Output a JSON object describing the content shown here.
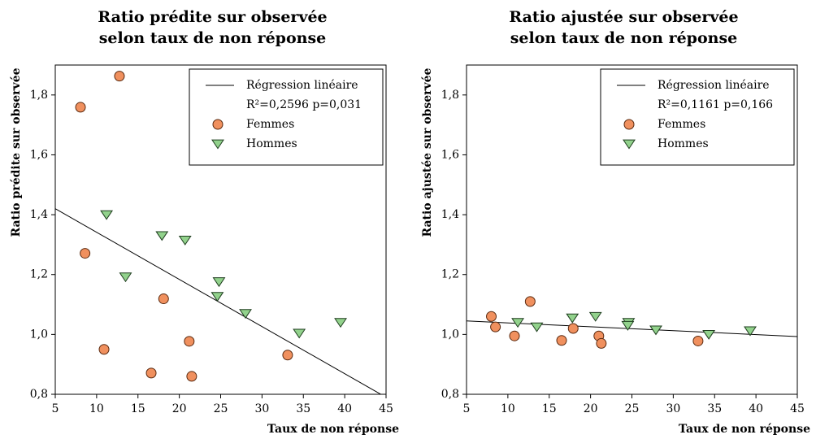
{
  "chart_data": [
    {
      "type": "scatter",
      "title": [
        "Ratio prédite sur observée",
        "selon taux de non réponse"
      ],
      "xlabel": "Taux de non réponse",
      "ylabel": "Ratio prédite sur observée",
      "annotation": "R²=0,2596 p=0,031",
      "xlim": [
        5,
        45
      ],
      "xticks": [
        5,
        10,
        15,
        20,
        25,
        30,
        35,
        40,
        45
      ],
      "ylim": [
        0.8,
        1.9
      ],
      "yticks": [
        {
          "value": 0.8,
          "label": "0,8"
        },
        {
          "value": 1.0,
          "label": "1,0"
        },
        {
          "value": 1.2,
          "label": "1,2"
        },
        {
          "value": 1.4,
          "label": "1,4"
        },
        {
          "value": 1.6,
          "label": "1,6"
        },
        {
          "value": 1.8,
          "label": "1,8"
        }
      ],
      "series": [
        {
          "name": "Régression linéaire",
          "kind": "line",
          "color": "#000000",
          "x": [
            5,
            45
          ],
          "values": [
            1.42,
            0.79
          ]
        },
        {
          "name": "Femmes",
          "marker": "circle",
          "color": "#f0905e",
          "x": [
            8.05,
            12.76,
            8.6,
            10.9,
            18.1,
            16.6,
            21.2,
            21.5,
            33.1
          ],
          "values": [
            1.759,
            1.863,
            1.271,
            0.95,
            1.119,
            0.871,
            0.977,
            0.86,
            0.931
          ]
        },
        {
          "name": "Hommes",
          "marker": "triangle",
          "color": "#92d28c",
          "x": [
            11.2,
            13.5,
            17.9,
            20.7,
            24.8,
            24.6,
            28.0,
            34.5,
            39.5
          ],
          "values": [
            1.4,
            1.192,
            1.33,
            1.315,
            1.176,
            1.127,
            1.07,
            1.004,
            1.04
          ]
        }
      ]
    },
    {
      "type": "scatter",
      "title": [
        "Ratio ajustée sur observée",
        "selon taux de non réponse"
      ],
      "xlabel": "Taux de non réponse",
      "ylabel": "Ratio ajustée sur observée",
      "annotation": "R²=0,1161 p=0,166",
      "xlim": [
        5,
        45
      ],
      "xticks": [
        5,
        10,
        15,
        20,
        25,
        30,
        35,
        40,
        45
      ],
      "ylim": [
        0.8,
        1.9
      ],
      "yticks": [
        {
          "value": 0.8,
          "label": "0,8"
        },
        {
          "value": 1.0,
          "label": "1,0"
        },
        {
          "value": 1.2,
          "label": "1,2"
        },
        {
          "value": 1.4,
          "label": "1,4"
        },
        {
          "value": 1.6,
          "label": "1,6"
        },
        {
          "value": 1.8,
          "label": "1,8"
        }
      ],
      "series": [
        {
          "name": "Régression linéaire",
          "kind": "line",
          "color": "#000000",
          "x": [
            5,
            45
          ],
          "values": [
            1.045,
            0.993
          ]
        },
        {
          "name": "Femmes",
          "marker": "circle",
          "color": "#f0905e",
          "x": [
            8.0,
            8.5,
            10.8,
            12.7,
            16.5,
            17.9,
            21.0,
            21.3,
            33.0
          ],
          "values": [
            1.06,
            1.025,
            0.995,
            1.11,
            0.98,
            1.02,
            0.995,
            0.97,
            0.978
          ]
        },
        {
          "name": "Hommes",
          "marker": "triangle",
          "color": "#92d28c",
          "x": [
            11.2,
            13.5,
            17.8,
            20.6,
            24.6,
            24.5,
            27.9,
            34.3,
            39.3
          ],
          "values": [
            1.04,
            1.025,
            1.055,
            1.06,
            1.04,
            1.03,
            1.015,
            1.0,
            1.012
          ]
        }
      ]
    }
  ]
}
